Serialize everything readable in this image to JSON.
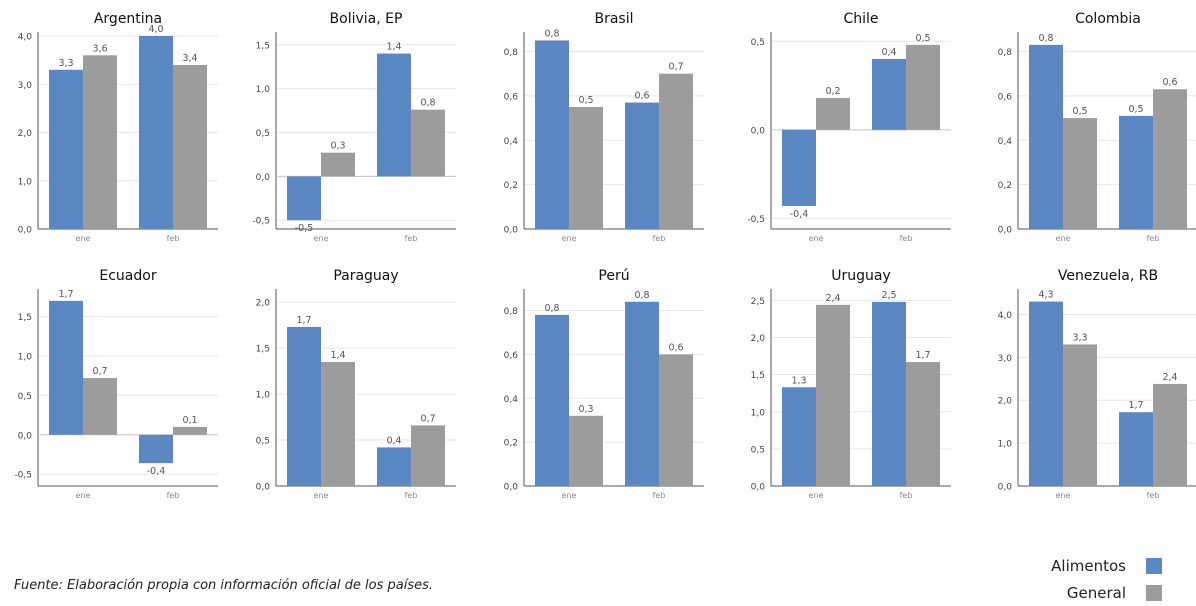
{
  "chart_data": [
    {
      "type": "bar",
      "title": "Argentina",
      "categories": [
        "ene",
        "feb"
      ],
      "ylim": [
        0,
        4.0
      ],
      "yticks": [
        "0,0",
        "1,0",
        "2,0",
        "3,0",
        "4,0"
      ],
      "ytick_values": [
        0,
        1,
        2,
        3,
        4
      ],
      "series": [
        {
          "name": "Alimentos",
          "values": [
            3.3,
            4.0
          ],
          "labels": [
            "3,3",
            "4,0"
          ]
        },
        {
          "name": "General",
          "values": [
            3.6,
            3.4
          ],
          "labels": [
            "3,6",
            "3,4"
          ]
        }
      ]
    },
    {
      "type": "bar",
      "title": "Bolivia, EP",
      "categories": [
        "ene",
        "feb"
      ],
      "ylim": [
        -0.6,
        1.6
      ],
      "yticks": [
        "-0,5",
        "0,0",
        "0,5",
        "1,0",
        "1,5"
      ],
      "ytick_values": [
        -0.5,
        0,
        0.5,
        1,
        1.5
      ],
      "series": [
        {
          "name": "Alimentos",
          "values": [
            -0.5,
            1.4
          ],
          "labels": [
            "-0,5",
            "1,4"
          ]
        },
        {
          "name": "General",
          "values": [
            0.27,
            0.76
          ],
          "labels": [
            "0,3",
            "0,8"
          ]
        }
      ]
    },
    {
      "type": "bar",
      "title": "Brasil",
      "categories": [
        "ene",
        "feb"
      ],
      "ylim": [
        0,
        0.87
      ],
      "yticks": [
        "0,0",
        "0,2",
        "0,4",
        "0,6",
        "0,8"
      ],
      "ytick_values": [
        0,
        0.2,
        0.4,
        0.6,
        0.8
      ],
      "series": [
        {
          "name": "Alimentos",
          "values": [
            0.85,
            0.57
          ],
          "labels": [
            "0,8",
            "0,6"
          ]
        },
        {
          "name": "General",
          "values": [
            0.55,
            0.7
          ],
          "labels": [
            "0,5",
            "0,7"
          ]
        }
      ]
    },
    {
      "type": "bar",
      "title": "Chile",
      "categories": [
        "ene",
        "feb"
      ],
      "ylim": [
        -0.56,
        0.53
      ],
      "yticks": [
        "-0,5",
        "0,0",
        "0,5"
      ],
      "ytick_values": [
        -0.5,
        0,
        0.5
      ],
      "series": [
        {
          "name": "Alimentos",
          "values": [
            -0.43,
            0.4
          ],
          "labels": [
            "-0,4",
            "0,4"
          ]
        },
        {
          "name": "General",
          "values": [
            0.18,
            0.48
          ],
          "labels": [
            "0,2",
            "0,5"
          ]
        }
      ]
    },
    {
      "type": "bar",
      "title": "Colombia",
      "categories": [
        "ene",
        "feb"
      ],
      "ylim": [
        0,
        0.87
      ],
      "yticks": [
        "0,0",
        "0,2",
        "0,4",
        "0,6",
        "0,8"
      ],
      "ytick_values": [
        0,
        0.2,
        0.4,
        0.6,
        0.8
      ],
      "series": [
        {
          "name": "Alimentos",
          "values": [
            0.83,
            0.51
          ],
          "labels": [
            "0,8",
            "0,5"
          ]
        },
        {
          "name": "General",
          "values": [
            0.5,
            0.63
          ],
          "labels": [
            "0,5",
            "0,6"
          ]
        }
      ]
    },
    {
      "type": "bar",
      "title": "Ecuador",
      "categories": [
        "ene",
        "feb"
      ],
      "ylim": [
        -0.65,
        1.8
      ],
      "yticks": [
        "-0,5",
        "0,0",
        "0,5",
        "1,0",
        "1,5"
      ],
      "ytick_values": [
        -0.5,
        0,
        0.5,
        1,
        1.5
      ],
      "series": [
        {
          "name": "Alimentos",
          "values": [
            1.7,
            -0.36
          ],
          "labels": [
            "1,7",
            "-0,4"
          ]
        },
        {
          "name": "General",
          "values": [
            0.72,
            0.1
          ],
          "labels": [
            "0,7",
            "0,1"
          ]
        }
      ]
    },
    {
      "type": "bar",
      "title": "Paraguay",
      "categories": [
        "ene",
        "feb"
      ],
      "ylim": [
        0,
        2.1
      ],
      "yticks": [
        "0,0",
        "0,5",
        "1,0",
        "1,5",
        "2,0"
      ],
      "ytick_values": [
        0,
        0.5,
        1,
        1.5,
        2
      ],
      "series": [
        {
          "name": "Alimentos",
          "values": [
            1.73,
            0.42
          ],
          "labels": [
            "1,7",
            "0,4"
          ]
        },
        {
          "name": "General",
          "values": [
            1.35,
            0.66
          ],
          "labels": [
            "1,4",
            "0,7"
          ]
        }
      ]
    },
    {
      "type": "bar",
      "title": "Perú",
      "categories": [
        "ene",
        "feb"
      ],
      "ylim": [
        0,
        0.88
      ],
      "yticks": [
        "0,0",
        "0,2",
        "0,4",
        "0,6",
        "0,8"
      ],
      "ytick_values": [
        0,
        0.2,
        0.4,
        0.6,
        0.8
      ],
      "series": [
        {
          "name": "Alimentos",
          "values": [
            0.78,
            0.84
          ],
          "labels": [
            "0,8",
            "0,8"
          ]
        },
        {
          "name": "General",
          "values": [
            0.32,
            0.6
          ],
          "labels": [
            "0,3",
            "0,6"
          ]
        }
      ]
    },
    {
      "type": "bar",
      "title": "Uruguay",
      "categories": [
        "ene",
        "feb"
      ],
      "ylim": [
        0,
        2.6
      ],
      "yticks": [
        "0,0",
        "0,5",
        "1,0",
        "1,5",
        "2,0",
        "2,5"
      ],
      "ytick_values": [
        0,
        0.5,
        1,
        1.5,
        2,
        2.5
      ],
      "series": [
        {
          "name": "Alimentos",
          "values": [
            1.33,
            2.48
          ],
          "labels": [
            "1,3",
            "2,5"
          ]
        },
        {
          "name": "General",
          "values": [
            2.44,
            1.67
          ],
          "labels": [
            "2,4",
            "1,7"
          ]
        }
      ]
    },
    {
      "type": "bar",
      "title": "Venezuela, RB",
      "categories": [
        "ene",
        "feb"
      ],
      "ylim": [
        0,
        4.5
      ],
      "yticks": [
        "0,0",
        "1,0",
        "2,0",
        "3,0",
        "4,0"
      ],
      "ytick_values": [
        0,
        1,
        2,
        3,
        4
      ],
      "series": [
        {
          "name": "Alimentos",
          "values": [
            4.3,
            1.72
          ],
          "labels": [
            "4,3",
            "1,7"
          ]
        },
        {
          "name": "General",
          "values": [
            3.3,
            2.38
          ],
          "labels": [
            "3,3",
            "2,4"
          ]
        }
      ]
    }
  ],
  "colors": {
    "alimentos": "#5b87c2",
    "general": "#9c9c9c"
  },
  "legend": {
    "items": [
      {
        "label": "Alimentos",
        "color": "#5b87c2"
      },
      {
        "label": "General",
        "color": "#9c9c9c"
      }
    ]
  },
  "source": "Fuente: Elaboración propia con información oficial de los países."
}
